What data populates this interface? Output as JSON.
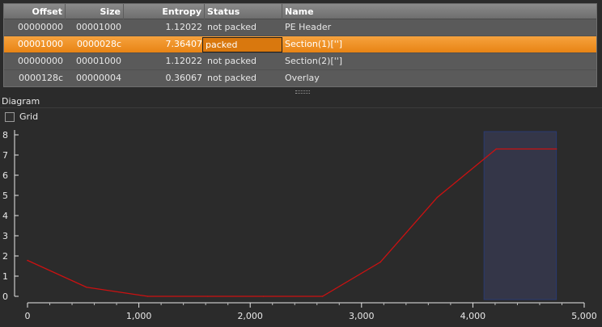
{
  "table": {
    "columns": [
      {
        "key": "offset",
        "label": "Offset"
      },
      {
        "key": "size",
        "label": "Size"
      },
      {
        "key": "entropy",
        "label": "Entropy"
      },
      {
        "key": "status",
        "label": "Status"
      },
      {
        "key": "name",
        "label": "Name"
      }
    ],
    "rows": [
      {
        "offset": "00000000",
        "size": "00001000",
        "entropy": "1.12022",
        "status": "not packed",
        "name": "PE Header",
        "selected": false
      },
      {
        "offset": "00001000",
        "size": "0000028c",
        "entropy": "7.36407",
        "status": "packed",
        "name": "Section(1)['']",
        "selected": true
      },
      {
        "offset": "00000000",
        "size": "00001000",
        "entropy": "1.12022",
        "status": "not packed",
        "name": "Section(2)['']",
        "selected": false
      },
      {
        "offset": "0000128c",
        "size": "00000004",
        "entropy": "0.36067",
        "status": "not packed",
        "name": "Overlay",
        "selected": false
      }
    ]
  },
  "diagram": {
    "label": "Diagram",
    "grid_label": "Grid",
    "grid_checked": false
  },
  "chart_data": {
    "type": "line",
    "x": [
      0,
      530,
      1080,
      1620,
      2120,
      2650,
      3170,
      3680,
      4210,
      4750
    ],
    "y": [
      1.78,
      0.45,
      0.0,
      0.0,
      0.0,
      0.0,
      1.7,
      4.9,
      7.3,
      7.3
    ],
    "x_ticks": [
      0,
      1000,
      2000,
      3000,
      4000,
      5000
    ],
    "x_tick_labels": [
      "0",
      "1,000",
      "2,000",
      "3,000",
      "4,000",
      "5,000"
    ],
    "y_ticks": [
      0,
      1,
      2,
      3,
      4,
      5,
      6,
      7,
      8
    ],
    "xlim": [
      0,
      5000
    ],
    "ylim": [
      0,
      8
    ],
    "highlight_region": [
      4100,
      4750
    ],
    "grid": false,
    "line_color": "#cc1111",
    "highlight_color": "#343648"
  }
}
